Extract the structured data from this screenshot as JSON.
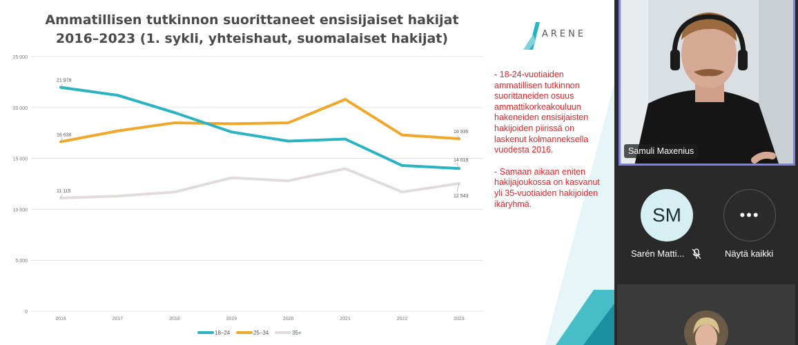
{
  "slide": {
    "title_line1": "Ammatillisen tutkinnon suorittaneet ensisijaiset hakijat",
    "title_line2": "2016–2023 (1. sykli, yhteishaut, suomalaiset hakijat)",
    "logo_text": "ARENE",
    "note_paragraphs": [
      "- 18-24-vuotiaiden ammatillisen tutkinnon suorittaneiden osuus ammattikorkeakouluun hakeneiden ensisijaisten hakijoiden piirissä on laskenut kolmanneksella vuodesta 2016.",
      "- Samaan aikaan eniten hakijajoukossa on kasvanut yli 35-vuotiaiden hakijoiden ikäryhmä."
    ]
  },
  "chart_data": {
    "type": "line",
    "title": "Ammatillisen tutkinnon suorittaneet ensisijaiset hakijat 2016–2023 (1. sykli, yhteishaut, suomalaiset hakijat)",
    "x": [
      "2016",
      "2017",
      "2018",
      "2019",
      "2020",
      "2021",
      "2022",
      "2023"
    ],
    "ylim": [
      0,
      25000
    ],
    "yticks": [
      0,
      5000,
      10000,
      15000,
      20000,
      25000
    ],
    "ytick_labels": [
      "0",
      "5 000",
      "10 000",
      "15 000",
      "20 000",
      "25 000"
    ],
    "grid": "horizontal",
    "legend": "bottom-center",
    "series": [
      {
        "name": "18–24",
        "color": "#2ab3c0",
        "values": [
          21978,
          21200,
          19500,
          17600,
          16700,
          16900,
          14300,
          14019
        ]
      },
      {
        "name": "25–34",
        "color": "#f0a82a",
        "values": [
          16638,
          17700,
          18500,
          18400,
          18500,
          20800,
          17300,
          16935
        ]
      },
      {
        "name": "35+",
        "color": "#e2dbdb",
        "values": [
          11115,
          11300,
          11700,
          13100,
          12800,
          14000,
          11700,
          12543
        ]
      }
    ],
    "data_labels": [
      {
        "series": 0,
        "index": 0,
        "text": "21 978"
      },
      {
        "series": 1,
        "index": 0,
        "text": "16 638"
      },
      {
        "series": 2,
        "index": 0,
        "text": "11 115"
      },
      {
        "series": 0,
        "index": 7,
        "text": "14 019"
      },
      {
        "series": 1,
        "index": 7,
        "text": "16 935"
      },
      {
        "series": 2,
        "index": 7,
        "text": "12 543"
      }
    ]
  },
  "meeting": {
    "speaker_name": "Samuli Maxenius",
    "participants": [
      {
        "initials": "SM",
        "display_name": "Sarén Matti...",
        "mic": "muted"
      }
    ],
    "show_all_label": "Näytä kaikki",
    "more_glyph": "•••"
  },
  "colors": {
    "speaker_border": "#7b83eb",
    "note_text": "#e0262b",
    "brand_teal": "#2ab3c0"
  }
}
